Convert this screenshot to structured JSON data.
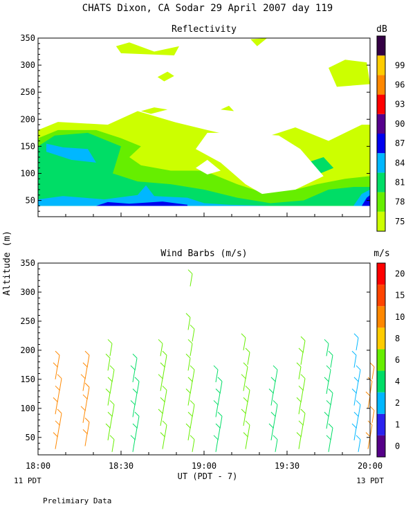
{
  "title": "CHATS Dixon, CA  Sodar  29 April 2007  day 119",
  "shared_y_label": "Altitude (m)",
  "x_axis": {
    "label": "UT  (PDT - 7)",
    "ticks": [
      "18:00",
      "18:30",
      "19:00",
      "19:30",
      "20:00"
    ],
    "left_note": "11 PDT",
    "right_note": "13 PDT"
  },
  "footer_note": "Prelimiary Data",
  "chart_data": [
    {
      "type": "heatmap",
      "title": "Reflectivity",
      "colorbar": {
        "unit": "dB",
        "labels": [
          "75",
          "78",
          "81",
          "84",
          "87",
          "90",
          "93",
          "96",
          "99"
        ],
        "colors": [
          "#ccff00",
          "#66ee00",
          "#00dd66",
          "#00b7ff",
          "#0000ee",
          "#55008c",
          "#ff0000",
          "#ff8800",
          "#ffcc00",
          "#330044"
        ]
      },
      "ylim": [
        20,
        350
      ],
      "xlim": [
        "18:00",
        "20:00"
      ],
      "yticks": [
        50,
        100,
        150,
        200,
        250,
        300,
        350
      ],
      "grid": false,
      "regions": [
        {
          "level": "75",
          "color": "#ccff00",
          "points": [
            [
              18.0,
              40
            ],
            [
              18.0,
              180
            ],
            [
              18.12,
              195
            ],
            [
              18.42,
              190
            ],
            [
              18.6,
              215
            ],
            [
              18.82,
              195
            ],
            [
              19.02,
              180
            ],
            [
              19.3,
              160
            ],
            [
              19.55,
              185
            ],
            [
              19.75,
              160
            ],
            [
              19.95,
              190
            ],
            [
              20.0,
              190
            ],
            [
              20.0,
              40
            ]
          ]
        },
        {
          "level": "75",
          "color": "#ccff00",
          "points": [
            [
              18.47,
              335
            ],
            [
              18.55,
              342
            ],
            [
              18.7,
              325
            ],
            [
              18.85,
              335
            ],
            [
              18.82,
              318
            ],
            [
              18.5,
              322
            ]
          ]
        },
        {
          "level": "75",
          "color": "#ccff00",
          "points": [
            [
              19.28,
              348
            ],
            [
              19.32,
              335
            ],
            [
              19.38,
              350
            ]
          ]
        },
        {
          "level": "75",
          "color": "#ccff00",
          "points": [
            [
              19.75,
              295
            ],
            [
              19.85,
              310
            ],
            [
              19.98,
              305
            ],
            [
              20.0,
              265
            ],
            [
              19.8,
              260
            ]
          ]
        },
        {
          "level": "75",
          "color": "#ccff00",
          "points": [
            [
              18.72,
              278
            ],
            [
              18.78,
              288
            ],
            [
              18.82,
              280
            ],
            [
              18.76,
              270
            ]
          ]
        },
        {
          "level": "75",
          "color": "#ccff00",
          "points": [
            [
              18.62,
              215
            ],
            [
              18.7,
              222
            ],
            [
              18.78,
              218
            ],
            [
              18.68,
              210
            ]
          ]
        },
        {
          "level": "75",
          "color": "#ccff00",
          "points": [
            [
              19.1,
              218
            ],
            [
              19.15,
              225
            ],
            [
              19.18,
              215
            ]
          ]
        },
        {
          "level": "78",
          "color": "#66ee00",
          "points": [
            [
              18.0,
              40
            ],
            [
              18.0,
              165
            ],
            [
              18.12,
              180
            ],
            [
              18.35,
              180
            ],
            [
              18.5,
              165
            ],
            [
              18.62,
              150
            ],
            [
              18.55,
              130
            ],
            [
              18.62,
              115
            ],
            [
              18.8,
              105
            ],
            [
              19.0,
              105
            ],
            [
              19.2,
              80
            ],
            [
              19.35,
              65
            ],
            [
              19.55,
              70
            ],
            [
              19.68,
              80
            ],
            [
              19.85,
              90
            ],
            [
              20.0,
              95
            ],
            [
              20.0,
              40
            ]
          ]
        },
        {
          "level": "81",
          "color": "#00dd66",
          "points": [
            [
              18.0,
              40
            ],
            [
              18.0,
              150
            ],
            [
              18.1,
              170
            ],
            [
              18.3,
              175
            ],
            [
              18.5,
              150
            ],
            [
              18.45,
              100
            ],
            [
              18.6,
              85
            ],
            [
              18.8,
              80
            ],
            [
              19.0,
              70
            ],
            [
              19.2,
              55
            ],
            [
              19.4,
              45
            ],
            [
              19.6,
              50
            ],
            [
              19.75,
              70
            ],
            [
              19.9,
              75
            ],
            [
              20.0,
              75
            ],
            [
              20.0,
              40
            ]
          ]
        },
        {
          "level": "81",
          "color": "#00dd66",
          "points": [
            [
              19.58,
              105
            ],
            [
              19.62,
              120
            ],
            [
              19.72,
              130
            ],
            [
              19.78,
              110
            ],
            [
              19.7,
              100
            ]
          ]
        },
        {
          "level": "84",
          "color": "#00b7ff",
          "points": [
            [
              18.0,
              40
            ],
            [
              18.0,
              52
            ],
            [
              18.15,
              58
            ],
            [
              18.4,
              52
            ],
            [
              18.6,
              60
            ],
            [
              18.65,
              78
            ],
            [
              18.7,
              58
            ],
            [
              18.9,
              55
            ],
            [
              19.0,
              45
            ],
            [
              19.15,
              42
            ],
            [
              19.4,
              40
            ]
          ]
        },
        {
          "level": "84",
          "color": "#00b7ff",
          "points": [
            [
              18.05,
              155
            ],
            [
              18.15,
              148
            ],
            [
              18.3,
              145
            ],
            [
              18.35,
              120
            ],
            [
              18.2,
              125
            ],
            [
              18.05,
              140
            ]
          ]
        },
        {
          "level": "84",
          "color": "#00b7ff",
          "points": [
            [
              19.9,
              40
            ],
            [
              19.95,
              62
            ],
            [
              20.0,
              70
            ],
            [
              20.0,
              40
            ]
          ]
        },
        {
          "level": "87",
          "color": "#0000ee",
          "points": [
            [
              18.35,
              40
            ],
            [
              18.42,
              47
            ],
            [
              18.55,
              44
            ],
            [
              18.75,
              48
            ],
            [
              18.9,
              42
            ],
            [
              18.9,
              40
            ]
          ]
        },
        {
          "level": "87",
          "color": "#0000ee",
          "points": [
            [
              19.95,
              40
            ],
            [
              19.98,
              55
            ],
            [
              20.0,
              60
            ],
            [
              20.0,
              40
            ]
          ]
        }
      ],
      "blanks": [
        {
          "points": [
            [
              18.55,
              350
            ],
            [
              18.8,
              350
            ],
            [
              18.9,
              340
            ],
            [
              18.72,
              345
            ]
          ]
        },
        {
          "points": [
            [
              18.95,
              110
            ],
            [
              19.02,
              125
            ],
            [
              19.1,
              105
            ],
            [
              19.02,
              98
            ]
          ]
        },
        {
          "points": [
            [
              19.02,
              175
            ],
            [
              19.2,
              175
            ],
            [
              19.45,
              170
            ],
            [
              19.58,
              145
            ],
            [
              19.72,
              95
            ],
            [
              19.55,
              70
            ],
            [
              19.35,
              62
            ],
            [
              19.25,
              80
            ],
            [
              19.1,
              120
            ],
            [
              18.95,
              145
            ]
          ]
        }
      ]
    },
    {
      "type": "scatter",
      "title": "Wind Barbs (m/s)",
      "colorbar": {
        "unit": "m/s",
        "labels": [
          "0",
          "1",
          "2",
          "4",
          "6",
          "8",
          "10",
          "15",
          "20"
        ],
        "colors": [
          "#550088",
          "#2a22ee",
          "#00b7ff",
          "#00dd66",
          "#66ee00",
          "#ffcc00",
          "#ff8800",
          "#ff4400",
          "#ff0000"
        ]
      },
      "ylim": [
        20,
        350
      ],
      "xlim": [
        "18:00",
        "20:00"
      ],
      "yticks": [
        50,
        100,
        150,
        200,
        250,
        300,
        350
      ],
      "grid": false,
      "barbs": [
        {
          "time": "18:07",
          "speed_color": "#ff8800",
          "altitudes": [
            30,
            50,
            70,
            90,
            110,
            130,
            150,
            170
          ]
        },
        {
          "time": "18:17",
          "speed_color": "#ff8800",
          "altitudes": [
            35,
            55,
            75,
            95,
            115,
            130,
            150,
            170
          ]
        },
        {
          "time": "18:26",
          "speed_color": "#66ee00",
          "altitudes": [
            25,
            45,
            65,
            85,
            105,
            125,
            145,
            165,
            190
          ]
        },
        {
          "time": "18:35",
          "speed_color": "#00dd66",
          "altitudes": [
            25,
            45,
            65,
            85,
            105,
            125,
            145,
            165
          ]
        },
        {
          "time": "18:45",
          "speed_color": "#66ee00",
          "altitudes": [
            30,
            50,
            70,
            90,
            110,
            130,
            150,
            170,
            190
          ]
        },
        {
          "time": "18:55",
          "speed_color": "#66ee00",
          "altitudes": [
            25,
            45,
            65,
            85,
            105,
            125,
            145,
            165,
            190,
            215,
            235,
            310
          ]
        },
        {
          "time": "19:05",
          "speed_color": "#00dd66",
          "altitudes": [
            25,
            45,
            65,
            85,
            105,
            125,
            145
          ]
        },
        {
          "time": "19:15",
          "speed_color": "#66ee00",
          "altitudes": [
            30,
            50,
            70,
            90,
            110,
            130,
            150,
            175,
            200
          ]
        },
        {
          "time": "19:25",
          "speed_color": "#00dd66",
          "altitudes": [
            25,
            45,
            65,
            85,
            105,
            125,
            145
          ]
        },
        {
          "time": "19:35",
          "speed_color": "#66ee00",
          "altitudes": [
            30,
            50,
            70,
            90,
            110,
            130,
            150,
            175,
            195
          ]
        },
        {
          "time": "19:45",
          "speed_color": "#00dd66",
          "altitudes": [
            25,
            45,
            65,
            85,
            105,
            125,
            145,
            170,
            190
          ]
        },
        {
          "time": "19:55",
          "speed_color": "#00b7ff",
          "altitudes": [
            25,
            45,
            65,
            85,
            105,
            125,
            145,
            170,
            200
          ]
        },
        {
          "time": "20:00",
          "speed_color": "#ff8800",
          "altitudes": [
            30,
            50,
            75,
            100,
            125,
            150
          ]
        }
      ]
    }
  ]
}
